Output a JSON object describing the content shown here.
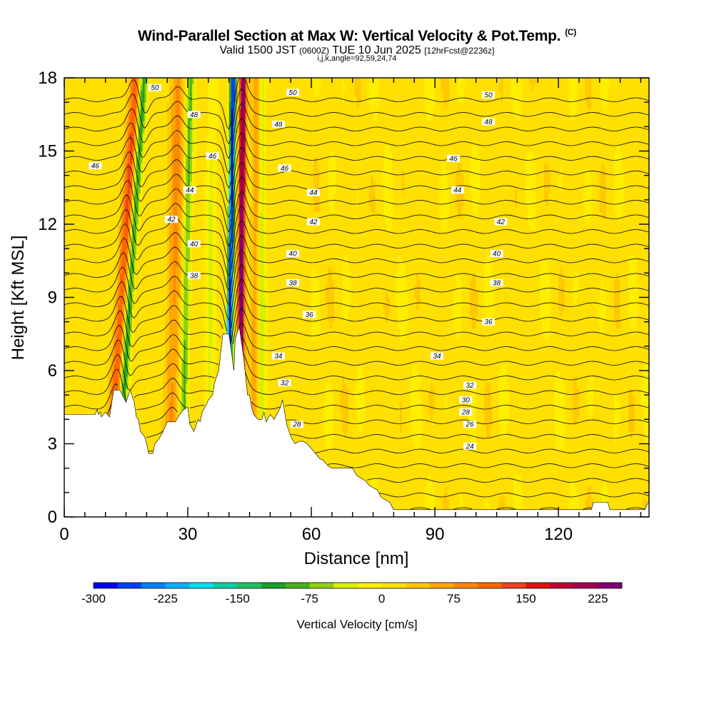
{
  "header": {
    "title": "Wind-Parallel Section at Max W: Vertical Velocity & Pot.Temp.",
    "copyright": "(C)",
    "valid_main_a": "Valid 1500 JST",
    "valid_utc": "(0600Z)",
    "valid_main_b": "TUE 10 Jun 2025",
    "forecast": "[12hrFcst@2236z]",
    "indices": "i,j,k,angle=92,59,24,74"
  },
  "chart_data": {
    "type": "heatmap",
    "xlabel": "Distance [nm]",
    "ylabel": "Height [Kft MSL]",
    "xlim": [
      0,
      142
    ],
    "ylim": [
      0,
      18
    ],
    "x_ticks": [
      0,
      30,
      60,
      90,
      120
    ],
    "y_ticks": [
      0,
      3,
      6,
      9,
      12,
      15,
      18
    ],
    "colorbar": {
      "label": "Vertical Velocity [cm/s]",
      "range": [
        -300,
        250
      ],
      "step": 25,
      "ticks": [
        -300,
        -225,
        -150,
        -75,
        0,
        75,
        150,
        225
      ],
      "colors": [
        "#0000ee",
        "#0040ff",
        "#0080ff",
        "#00b0ff",
        "#00e0f0",
        "#00d0a0",
        "#20c060",
        "#18a028",
        "#48b018",
        "#90d010",
        "#d8f000",
        "#ffee00",
        "#ffe000",
        "#ffc800",
        "#ffa800",
        "#ff8800",
        "#ff6600",
        "#f04020",
        "#e01010",
        "#c00030",
        "#a00050",
        "#800070"
      ]
    },
    "theta_labels": [
      {
        "v": "50",
        "x": 22,
        "y": 17.6
      },
      {
        "v": "48",
        "x": 31.5,
        "y": 16.5
      },
      {
        "v": "46",
        "x": 36,
        "y": 14.8
      },
      {
        "v": "46",
        "x": 7.5,
        "y": 14.4
      },
      {
        "v": "44",
        "x": 30.5,
        "y": 13.4
      },
      {
        "v": "42",
        "x": 26,
        "y": 12.2
      },
      {
        "v": "40",
        "x": 31.5,
        "y": 11.2
      },
      {
        "v": "38",
        "x": 31.5,
        "y": 9.9
      },
      {
        "v": "50",
        "x": 55.5,
        "y": 17.4
      },
      {
        "v": "48",
        "x": 52,
        "y": 16.1
      },
      {
        "v": "46",
        "x": 53.5,
        "y": 14.3
      },
      {
        "v": "44",
        "x": 60.5,
        "y": 13.3
      },
      {
        "v": "42",
        "x": 60.5,
        "y": 12.1
      },
      {
        "v": "40",
        "x": 55.5,
        "y": 10.8
      },
      {
        "v": "38",
        "x": 55.5,
        "y": 9.6
      },
      {
        "v": "36",
        "x": 59.5,
        "y": 8.3
      },
      {
        "v": "34",
        "x": 52,
        "y": 6.6
      },
      {
        "v": "32",
        "x": 53.5,
        "y": 5.5
      },
      {
        "v": "28",
        "x": 56.5,
        "y": 3.8
      },
      {
        "v": "50",
        "x": 103,
        "y": 17.3
      },
      {
        "v": "48",
        "x": 103,
        "y": 16.2
      },
      {
        "v": "46",
        "x": 94.5,
        "y": 14.7
      },
      {
        "v": "44",
        "x": 95.5,
        "y": 13.4
      },
      {
        "v": "42",
        "x": 106,
        "y": 12.1
      },
      {
        "v": "40",
        "x": 105,
        "y": 10.8
      },
      {
        "v": "38",
        "x": 105,
        "y": 9.6
      },
      {
        "v": "36",
        "x": 103,
        "y": 8.0
      },
      {
        "v": "34",
        "x": 90.5,
        "y": 6.6
      },
      {
        "v": "32",
        "x": 98.5,
        "y": 5.4
      },
      {
        "v": "30",
        "x": 97.5,
        "y": 4.8
      },
      {
        "v": "28",
        "x": 97.5,
        "y": 4.3
      },
      {
        "v": "26",
        "x": 98.5,
        "y": 3.8
      },
      {
        "v": "24",
        "x": 98.5,
        "y": 2.9
      }
    ]
  }
}
